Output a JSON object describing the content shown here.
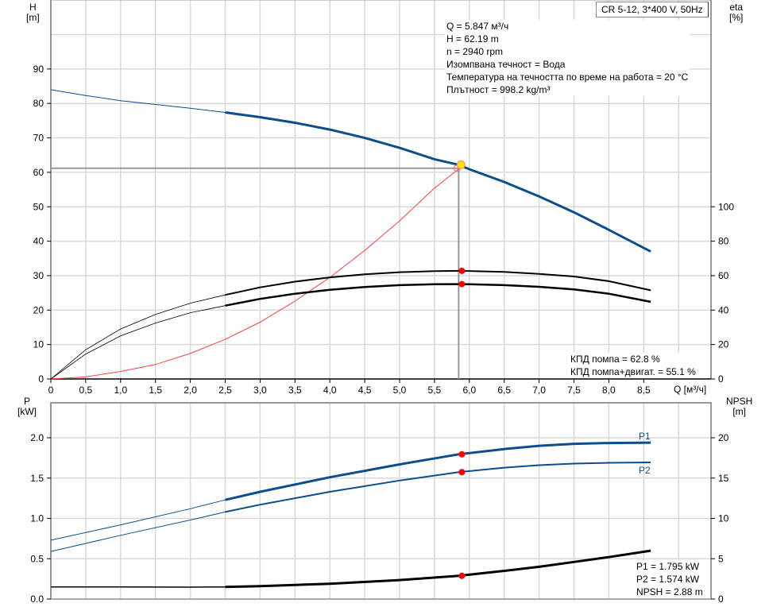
{
  "chart_data": [
    {
      "type": "line",
      "title": "CR 5-12, 3*400 V, 50Hz",
      "xlabel": "Q [м³/ч]",
      "ylabel": "H [m]",
      "y2label": "eta [%]",
      "xlim": [
        0,
        9.0
      ],
      "ylim": [
        0,
        100
      ],
      "y2lim": [
        0,
        220
      ],
      "xticks": [
        "0",
        "0,5",
        "1,0",
        "1,5",
        "2,0",
        "2,5",
        "3,0",
        "3,5",
        "4,0",
        "4,5",
        "5,0",
        "5,5",
        "6,0",
        "6,5",
        "7,0",
        "7,5",
        "8,0",
        "8,5"
      ],
      "yticks": [
        "0",
        "10",
        "20",
        "30",
        "40",
        "50",
        "60",
        "70",
        "80",
        "90"
      ],
      "y2ticks": [
        "0",
        "20",
        "40",
        "60",
        "80",
        "100"
      ],
      "grid": true,
      "series": [
        {
          "name": "H",
          "axis": "left",
          "color": "#0b4e8e",
          "x": [
            0,
            0.5,
            1.0,
            1.5,
            2.0,
            2.5,
            3.0,
            3.5,
            4.0,
            4.5,
            5.0,
            5.5,
            5.847,
            6.0,
            6.5,
            7.0,
            7.5,
            8.0,
            8.6
          ],
          "y": [
            84,
            82.3,
            80.8,
            79.7,
            78.6,
            77.4,
            76.0,
            74.4,
            72.4,
            70.0,
            67.1,
            63.8,
            62.19,
            60.9,
            57.2,
            53.0,
            48.4,
            43.3,
            37.0
          ]
        },
        {
          "name": "eta pump",
          "axis": "right",
          "color": "#000000",
          "x": [
            0,
            0.5,
            1.0,
            1.5,
            2.0,
            2.5,
            3.0,
            3.5,
            4.0,
            4.5,
            5.0,
            5.5,
            5.847,
            6.0,
            6.5,
            7.0,
            7.5,
            8.0,
            8.6
          ],
          "y": [
            0,
            17,
            29,
            37.5,
            44,
            48.8,
            53.2,
            56.5,
            59.0,
            60.8,
            62.0,
            62.6,
            62.8,
            62.7,
            62.2,
            61.0,
            59.5,
            56.8,
            51.5
          ]
        },
        {
          "name": "eta pump+motor",
          "axis": "right",
          "color": "#000000",
          "x": [
            0,
            0.5,
            1.0,
            1.5,
            2.0,
            2.5,
            3.0,
            3.5,
            4.0,
            4.5,
            5.0,
            5.5,
            5.847,
            6.0,
            6.5,
            7.0,
            7.5,
            8.0,
            8.6
          ],
          "y": [
            0,
            14.5,
            25,
            32.5,
            38.5,
            42.6,
            46.5,
            49.5,
            51.8,
            53.4,
            54.5,
            55.0,
            55.1,
            55.0,
            54.5,
            53.5,
            52.0,
            49.5,
            44.8
          ]
        },
        {
          "name": "system curve",
          "axis": "left",
          "color": "#ff4040",
          "x": [
            0,
            0.5,
            1.0,
            1.5,
            2.0,
            2.5,
            3.0,
            3.5,
            4.0,
            4.5,
            5.0,
            5.5,
            5.847
          ],
          "y": [
            0,
            0.6,
            2.2,
            4.2,
            7.4,
            11.5,
            16.5,
            22.6,
            29.5,
            37.3,
            45.9,
            55.4,
            61.0
          ]
        }
      ],
      "operating_point": {
        "Q": 5.847,
        "H": 62.19,
        "eta_pump": 62.8,
        "eta_total": 55.1
      }
    },
    {
      "type": "line",
      "xlabel": "Q [м³/ч]",
      "ylabel": "P [kW]",
      "y2label": "NPSH [m]",
      "xlim": [
        0,
        9.0
      ],
      "ylim": [
        0,
        2.2
      ],
      "y2lim": [
        0,
        22
      ],
      "yticks": [
        "0.0",
        "0.5",
        "1.0",
        "1.5",
        "2.0"
      ],
      "y2ticks": [
        "0",
        "5",
        "10",
        "15",
        "20"
      ],
      "grid": true,
      "series": [
        {
          "name": "P1",
          "axis": "left",
          "color": "#0b4e8e",
          "x": [
            0,
            1.0,
            2.0,
            2.5,
            3.0,
            4.0,
            5.0,
            5.847,
            6.5,
            7.0,
            7.5,
            8.0,
            8.6
          ],
          "y": [
            0.73,
            0.92,
            1.12,
            1.23,
            1.33,
            1.51,
            1.67,
            1.795,
            1.86,
            1.9,
            1.925,
            1.935,
            1.94
          ]
        },
        {
          "name": "P2",
          "axis": "left",
          "color": "#0b4e8e",
          "x": [
            0,
            1.0,
            2.0,
            2.5,
            3.0,
            4.0,
            5.0,
            5.847,
            6.5,
            7.0,
            7.5,
            8.0,
            8.6
          ],
          "y": [
            0.59,
            0.79,
            0.98,
            1.08,
            1.17,
            1.33,
            1.47,
            1.574,
            1.63,
            1.66,
            1.68,
            1.69,
            1.695
          ]
        },
        {
          "name": "NPSH",
          "axis": "right",
          "color": "#000000",
          "x": [
            0,
            1.0,
            2.0,
            2.5,
            3.0,
            4.0,
            5.0,
            5.847,
            6.5,
            7.0,
            7.5,
            8.0,
            8.6
          ],
          "y": [
            1.5,
            1.5,
            1.48,
            1.5,
            1.6,
            1.9,
            2.35,
            2.88,
            3.5,
            4.0,
            4.6,
            5.2,
            6.0
          ]
        }
      ],
      "operating_point": {
        "P1": 1.795,
        "P2": 1.574,
        "NPSH": 2.88
      }
    }
  ],
  "header": {
    "model": "CR 5-12, 3*400 V, 50Hz"
  },
  "top_axes": {
    "y_title": "H",
    "y_unit": "[m]",
    "y2_title": "eta",
    "y2_unit": "[%]",
    "x_label": "Q [м³/ч]"
  },
  "bottom_axes": {
    "y_title": "P",
    "y_unit": "[kW]",
    "y2_title": "NPSH",
    "y2_unit": "[m]"
  },
  "duty_info": {
    "q": "Q = 5.847 м³/ч",
    "h": "H = 62.19 m",
    "n": "n = 2940 rpm",
    "fluid": "Изомпвана течност = Вода",
    "temp": "Температура на течността по време на работа = 20 °C",
    "density": "Плътност = 998.2 kg/m³"
  },
  "efficiency_info": {
    "pump": "КПД помпа = 62.8 %",
    "total": "КПД помпа+двигат. = 55.1 %"
  },
  "power_info": {
    "p1": "P1 = 1.795 kW",
    "p2": "P2 = 1.574 kW",
    "npsh": "NPSH = 2.88 m"
  },
  "curve_labels": {
    "p1": "P1",
    "p2": "P2"
  },
  "colors": {
    "head": "#0b4e8e",
    "power": "#0b4e8e",
    "eta": "#000000",
    "system": "#ff4040",
    "marker": "#ff0000",
    "op_point": "#ffe600",
    "grid": "#d9d9d9"
  }
}
